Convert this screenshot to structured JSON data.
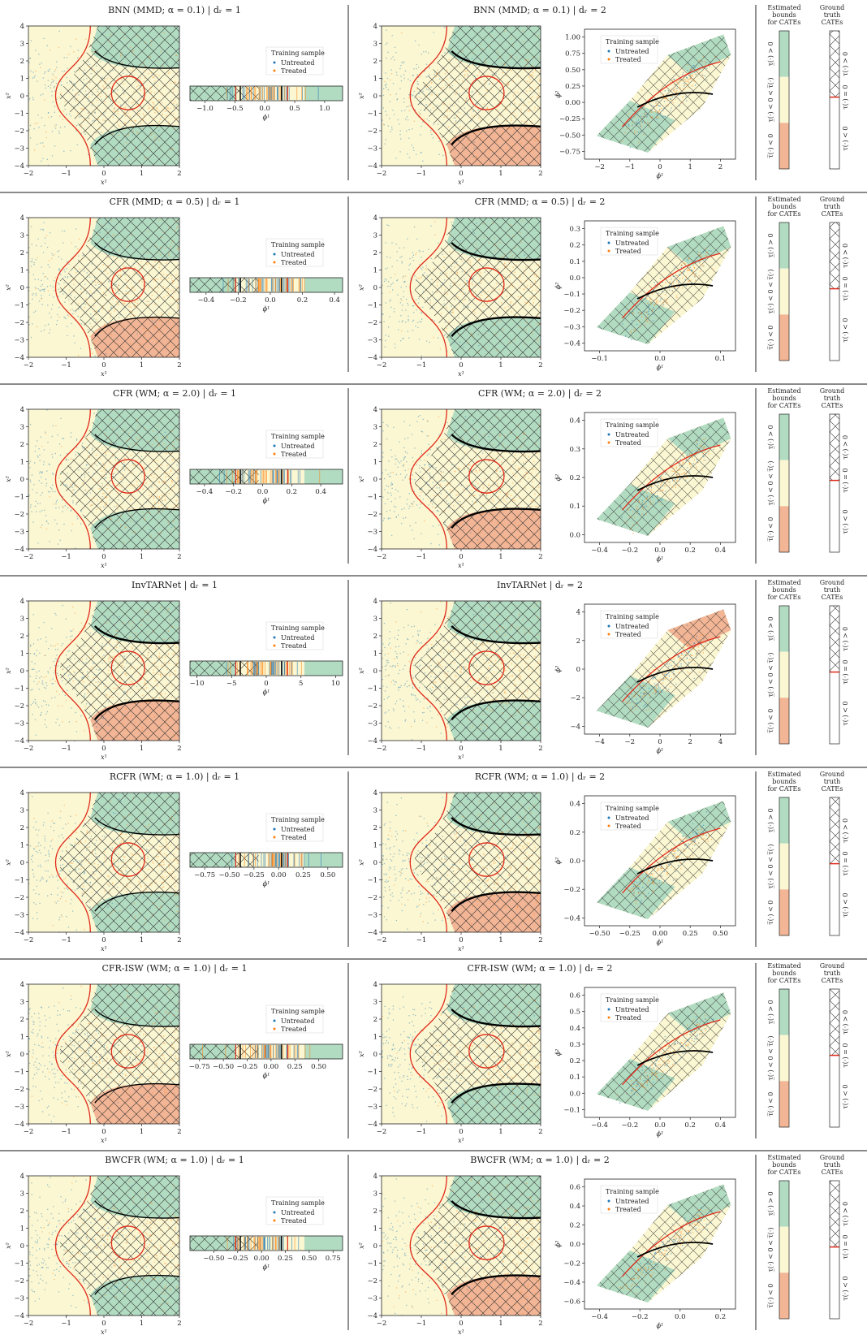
{
  "colors": {
    "negative": "#f2b595",
    "uncertain": "#fbf7d2",
    "positive": "#b2dcc2",
    "boundary_true": "#e02a1a",
    "boundary_est": "#000000",
    "untreated": "#1f77b4",
    "treated": "#ff7f0e"
  },
  "legend": {
    "title": "Training sample",
    "untreated": "Untreated",
    "treated": "Treated"
  },
  "labels": {
    "x1": "x¹",
    "x2": "x²",
    "phi1": "ϕ¹",
    "phi2": "ϕ²",
    "estimated_title": [
      "Estimated",
      "bounds",
      "for CATEs"
    ],
    "ground_title": [
      "Ground",
      "truth",
      "CATEs"
    ],
    "est_pos": "τ̲(·) > 0",
    "est_mid": "τ̲(·) < 0 < τ̅(·)",
    "est_neg": "τ̅(·) < 0",
    "gt_pos": "τ(·) > 0",
    "gt_mid": "τ(·) = 0",
    "gt_neg": "τ(·) < 0"
  },
  "chart_data": [
    {
      "type": "heatmap",
      "method": "BNN (MMD; α = 0.1)",
      "left_title": "BNN (MMD; α = 0.1)   |   dᵣ = 1",
      "right_title": "BNN (MMD; α = 0.1)   |   dᵣ = 2",
      "strip_ticks": [
        "−1.0",
        "−0.5",
        "0.0",
        "0.5",
        "1.0"
      ],
      "strip_range": [
        -1.25,
        1.3
      ],
      "phi_x_ticks": [
        "−2",
        "−1",
        "0",
        "1",
        "2"
      ],
      "phi_y_ticks": [
        "1.00",
        "0.75",
        "0.50",
        "0.25",
        "0.00",
        "−0.25",
        "−0.50",
        "−0.75"
      ]
    },
    {
      "type": "heatmap",
      "method": "CFR (MMD; α = 0.5)",
      "left_title": "CFR (MMD; α = 0.5)   |   dᵣ = 1",
      "right_title": "CFR (MMD; α = 0.5)   |   dᵣ = 2",
      "strip_ticks": [
        "−0.4",
        "−0.2",
        "0.0",
        "0.2",
        "0.4"
      ],
      "strip_range": [
        -0.5,
        0.45
      ],
      "phi_x_ticks": [
        "−0.1",
        "0.0",
        "0.1"
      ],
      "phi_y_ticks": [
        "0.3",
        "0.2",
        "0.1",
        "0.0",
        "−0.1",
        "−0.2",
        "−0.3",
        "−0.4"
      ]
    },
    {
      "type": "heatmap",
      "method": "CFR (WM; α = 2.0)",
      "left_title": "CFR (WM; α = 2.0)   |   dᵣ = 1",
      "right_title": "CFR (WM; α = 2.0)   |   dᵣ = 2",
      "strip_ticks": [
        "−0.4",
        "−0.2",
        "0.0",
        "0.2",
        "0.4"
      ],
      "strip_range": [
        -0.5,
        0.55
      ],
      "phi_x_ticks": [
        "−0.4",
        "−0.2",
        "0.0",
        "0.2",
        "0.4"
      ],
      "phi_y_ticks": [
        "0.4",
        "0.3",
        "0.2",
        "0.1",
        "0.0"
      ]
    },
    {
      "type": "heatmap",
      "method": "InvTARNet",
      "left_title": "InvTARNet   |   dᵣ = 1",
      "right_title": "InvTARNet   |   dᵣ = 2",
      "strip_ticks": [
        "−10",
        "−5",
        "0",
        "5",
        "10"
      ],
      "strip_range": [
        -11,
        11
      ],
      "phi_x_ticks": [
        "−4",
        "−2",
        "0",
        "2",
        "4"
      ],
      "phi_y_ticks": [
        "4",
        "2",
        "0",
        "−2",
        "−4"
      ]
    },
    {
      "type": "heatmap",
      "method": "RCFR (WM; α = 1.0)",
      "left_title": "RCFR (WM; α = 1.0)   |   dᵣ = 1",
      "right_title": "RCFR (WM; α = 1.0)   |   dᵣ = 2",
      "strip_ticks": [
        "−0.75",
        "−0.50",
        "−0.25",
        "0.00",
        "0.25",
        "0.50"
      ],
      "strip_range": [
        -0.9,
        0.65
      ],
      "phi_x_ticks": [
        "−0.50",
        "−0.25",
        "0.00",
        "0.25",
        "0.50"
      ],
      "phi_y_ticks": [
        "0.4",
        "0.2",
        "0.0",
        "−0.2",
        "−0.4"
      ]
    },
    {
      "type": "heatmap",
      "method": "CFR-ISW (WM; α = 1.0)",
      "left_title": "CFR-ISW (WM; α = 1.0)   |   dᵣ = 1",
      "right_title": "CFR-ISW (WM; α = 1.0)   |   dᵣ = 2",
      "strip_ticks": [
        "−0.75",
        "−0.50",
        "−0.25",
        "0.00",
        "0.25",
        "0.50"
      ],
      "strip_range": [
        -0.85,
        0.75
      ],
      "phi_x_ticks": [
        "−0.4",
        "−0.2",
        "0.0",
        "0.2",
        "0.4"
      ],
      "phi_y_ticks": [
        "0.6",
        "0.5",
        "0.4",
        "0.3",
        "0.2",
        "0.1",
        "0.0",
        "−0.1"
      ]
    },
    {
      "type": "heatmap",
      "method": "BWCFR (WM; α = 1.0)",
      "left_title": "BWCFR (WM; α = 1.0)   |   dᵣ = 1",
      "right_title": "BWCFR (WM; α = 1.0)   |   dᵣ = 2",
      "strip_ticks": [
        "−0.50",
        "−0.25",
        "0.00",
        "0.25",
        "0.50",
        "0.75"
      ],
      "strip_range": [
        -0.75,
        0.85
      ],
      "phi_x_ticks": [
        "−0.4",
        "−0.2",
        "0.0",
        "0.2"
      ],
      "phi_y_ticks": [
        "0.6",
        "0.4",
        "0.2",
        "0.0",
        "−0.2",
        "−0.4",
        "−0.6"
      ]
    }
  ],
  "x_panel_ticks": {
    "x": [
      "−2",
      "−1",
      "0",
      "1",
      "2"
    ],
    "y": [
      "4",
      "3",
      "2",
      "1",
      "0",
      "−1",
      "−2",
      "−3",
      "−4"
    ]
  }
}
